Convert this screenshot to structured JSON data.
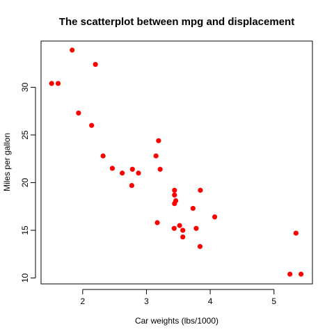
{
  "chart_data": {
    "type": "scatter",
    "title": "The scatterplot between mpg and displacement",
    "xlabel": "Car weights (lbs/1000)",
    "ylabel": "Miles per gallon",
    "xlim": [
      1.5,
      5.45
    ],
    "ylim": [
      10.4,
      33.9
    ],
    "xticks": [
      2,
      3,
      4,
      5
    ],
    "yticks": [
      10,
      15,
      20,
      25,
      30
    ],
    "grid": false,
    "legend": "none",
    "point_color": "#ff0000",
    "points": [
      {
        "x": 2.62,
        "y": 21.0
      },
      {
        "x": 2.875,
        "y": 21.0
      },
      {
        "x": 2.32,
        "y": 22.8
      },
      {
        "x": 3.215,
        "y": 21.4
      },
      {
        "x": 3.44,
        "y": 18.7
      },
      {
        "x": 3.46,
        "y": 18.1
      },
      {
        "x": 3.57,
        "y": 14.3
      },
      {
        "x": 3.19,
        "y": 24.4
      },
      {
        "x": 3.15,
        "y": 22.8
      },
      {
        "x": 3.44,
        "y": 19.2
      },
      {
        "x": 3.44,
        "y": 17.8
      },
      {
        "x": 4.07,
        "y": 16.4
      },
      {
        "x": 3.73,
        "y": 17.3
      },
      {
        "x": 3.78,
        "y": 15.2
      },
      {
        "x": 5.25,
        "y": 10.4
      },
      {
        "x": 5.424,
        "y": 10.4
      },
      {
        "x": 5.345,
        "y": 14.7
      },
      {
        "x": 2.2,
        "y": 32.4
      },
      {
        "x": 1.615,
        "y": 30.4
      },
      {
        "x": 1.835,
        "y": 33.9
      },
      {
        "x": 2.465,
        "y": 21.5
      },
      {
        "x": 3.52,
        "y": 15.5
      },
      {
        "x": 3.435,
        "y": 15.2
      },
      {
        "x": 3.84,
        "y": 13.3
      },
      {
        "x": 3.845,
        "y": 19.2
      },
      {
        "x": 1.935,
        "y": 27.3
      },
      {
        "x": 2.14,
        "y": 26.0
      },
      {
        "x": 1.513,
        "y": 30.4
      },
      {
        "x": 3.17,
        "y": 15.8
      },
      {
        "x": 2.77,
        "y": 19.7
      },
      {
        "x": 3.57,
        "y": 15.0
      },
      {
        "x": 2.78,
        "y": 21.4
      }
    ]
  }
}
